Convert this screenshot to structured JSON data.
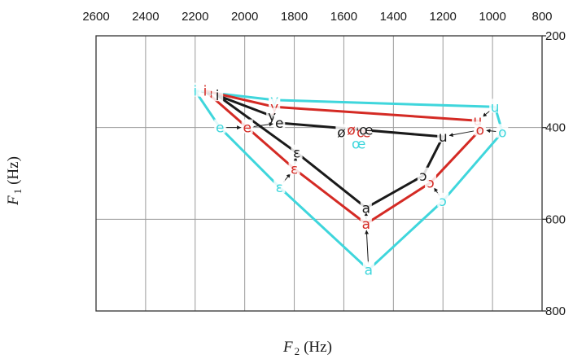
{
  "chart_data": {
    "type": "line",
    "title": "",
    "xlabel": "F",
    "xlabel_sub": "2",
    "xlabel_unit": "(Hz)",
    "ylabel": "F",
    "ylabel_sub": "1",
    "ylabel_unit": "(Hz)",
    "x_ticks": [
      2600,
      2400,
      2200,
      2000,
      1800,
      1600,
      1400,
      1200,
      1000,
      800
    ],
    "y_ticks": [
      200,
      400,
      600,
      800
    ],
    "xlim": [
      2600,
      800
    ],
    "ylim": [
      200,
      800
    ],
    "x_reversed": true,
    "y_reversed": true,
    "grid": true,
    "colors": {
      "cyan": "#3fd6dc",
      "red": "#d42a24",
      "black": "#1a1a1a"
    },
    "series": [
      {
        "color": "cyan",
        "closed": true,
        "points": [
          {
            "label": "i",
            "f2": 2200,
            "f1": 320
          },
          {
            "label": "y",
            "f2": 1880,
            "f1": 340
          },
          {
            "label": "u",
            "f2": 990,
            "f1": 355
          },
          {
            "label": "o",
            "f2": 960,
            "f1": 410
          },
          {
            "label": "ɔ",
            "f2": 1200,
            "f1": 560
          },
          {
            "label": "a",
            "f2": 1500,
            "f1": 710
          },
          {
            "label": "ɛ",
            "f2": 1860,
            "f1": 530
          },
          {
            "label": "e",
            "f2": 2100,
            "f1": 400
          }
        ],
        "loose_labels": [
          {
            "label": "œ",
            "f2": 1540,
            "f1": 435
          }
        ]
      },
      {
        "color": "red",
        "closed": true,
        "points": [
          {
            "label": "i",
            "f2": 2160,
            "f1": 320
          },
          {
            "label": "y",
            "f2": 1880,
            "f1": 355
          },
          {
            "label": "u",
            "f2": 1060,
            "f1": 385
          },
          {
            "label": "o",
            "f2": 1050,
            "f1": 405
          },
          {
            "label": "ɔ",
            "f2": 1250,
            "f1": 520
          },
          {
            "label": "a",
            "f2": 1510,
            "f1": 610
          },
          {
            "label": "ɛ",
            "f2": 1800,
            "f1": 490
          },
          {
            "label": "e",
            "f2": 1990,
            "f1": 400
          }
        ],
        "loose_labels": [
          {
            "label": "ø",
            "f2": 1570,
            "f1": 405
          },
          {
            "label": "œ",
            "f2": 1520,
            "f1": 410
          }
        ]
      },
      {
        "color": "black",
        "closed": true,
        "points": [
          {
            "label": "i",
            "f2": 2110,
            "f1": 330
          },
          {
            "label": "y",
            "f2": 1890,
            "f1": 375
          },
          {
            "label": "e",
            "f2": 1860,
            "f1": 390
          },
          {
            "label": "u",
            "f2": 1200,
            "f1": 420
          },
          {
            "label": "ɔ",
            "f2": 1280,
            "f1": 505
          },
          {
            "label": "a",
            "f2": 1510,
            "f1": 575
          },
          {
            "label": "ɛ",
            "f2": 1790,
            "f1": 455
          }
        ],
        "loose_labels": [
          {
            "label": "ø",
            "f2": 1610,
            "f1": 410
          },
          {
            "label": "œ",
            "f2": 1510,
            "f1": 405
          }
        ]
      }
    ],
    "arrows": [
      {
        "from": [
          2200,
          320
        ],
        "to": [
          2110,
          330
        ]
      },
      {
        "from": [
          1880,
          340
        ],
        "to": [
          1880,
          375
        ]
      },
      {
        "from": [
          990,
          355
        ],
        "to": [
          1060,
          385
        ]
      },
      {
        "from": [
          960,
          410
        ],
        "to": [
          1050,
          405
        ]
      },
      {
        "from": [
          1200,
          560
        ],
        "to": [
          1250,
          520
        ]
      },
      {
        "from": [
          1500,
          710
        ],
        "to": [
          1510,
          610
        ]
      },
      {
        "from": [
          1510,
          610
        ],
        "to": [
          1510,
          575
        ]
      },
      {
        "from": [
          1860,
          530
        ],
        "to": [
          1800,
          490
        ]
      },
      {
        "from": [
          1800,
          490
        ],
        "to": [
          1790,
          455
        ]
      },
      {
        "from": [
          2100,
          400
        ],
        "to": [
          1990,
          400
        ]
      },
      {
        "from": [
          1990,
          400
        ],
        "to": [
          1860,
          390
        ]
      },
      {
        "from": [
          1050,
          405
        ],
        "to": [
          1200,
          420
        ]
      },
      {
        "from": [
          1250,
          520
        ],
        "to": [
          1280,
          505
        ]
      }
    ]
  }
}
